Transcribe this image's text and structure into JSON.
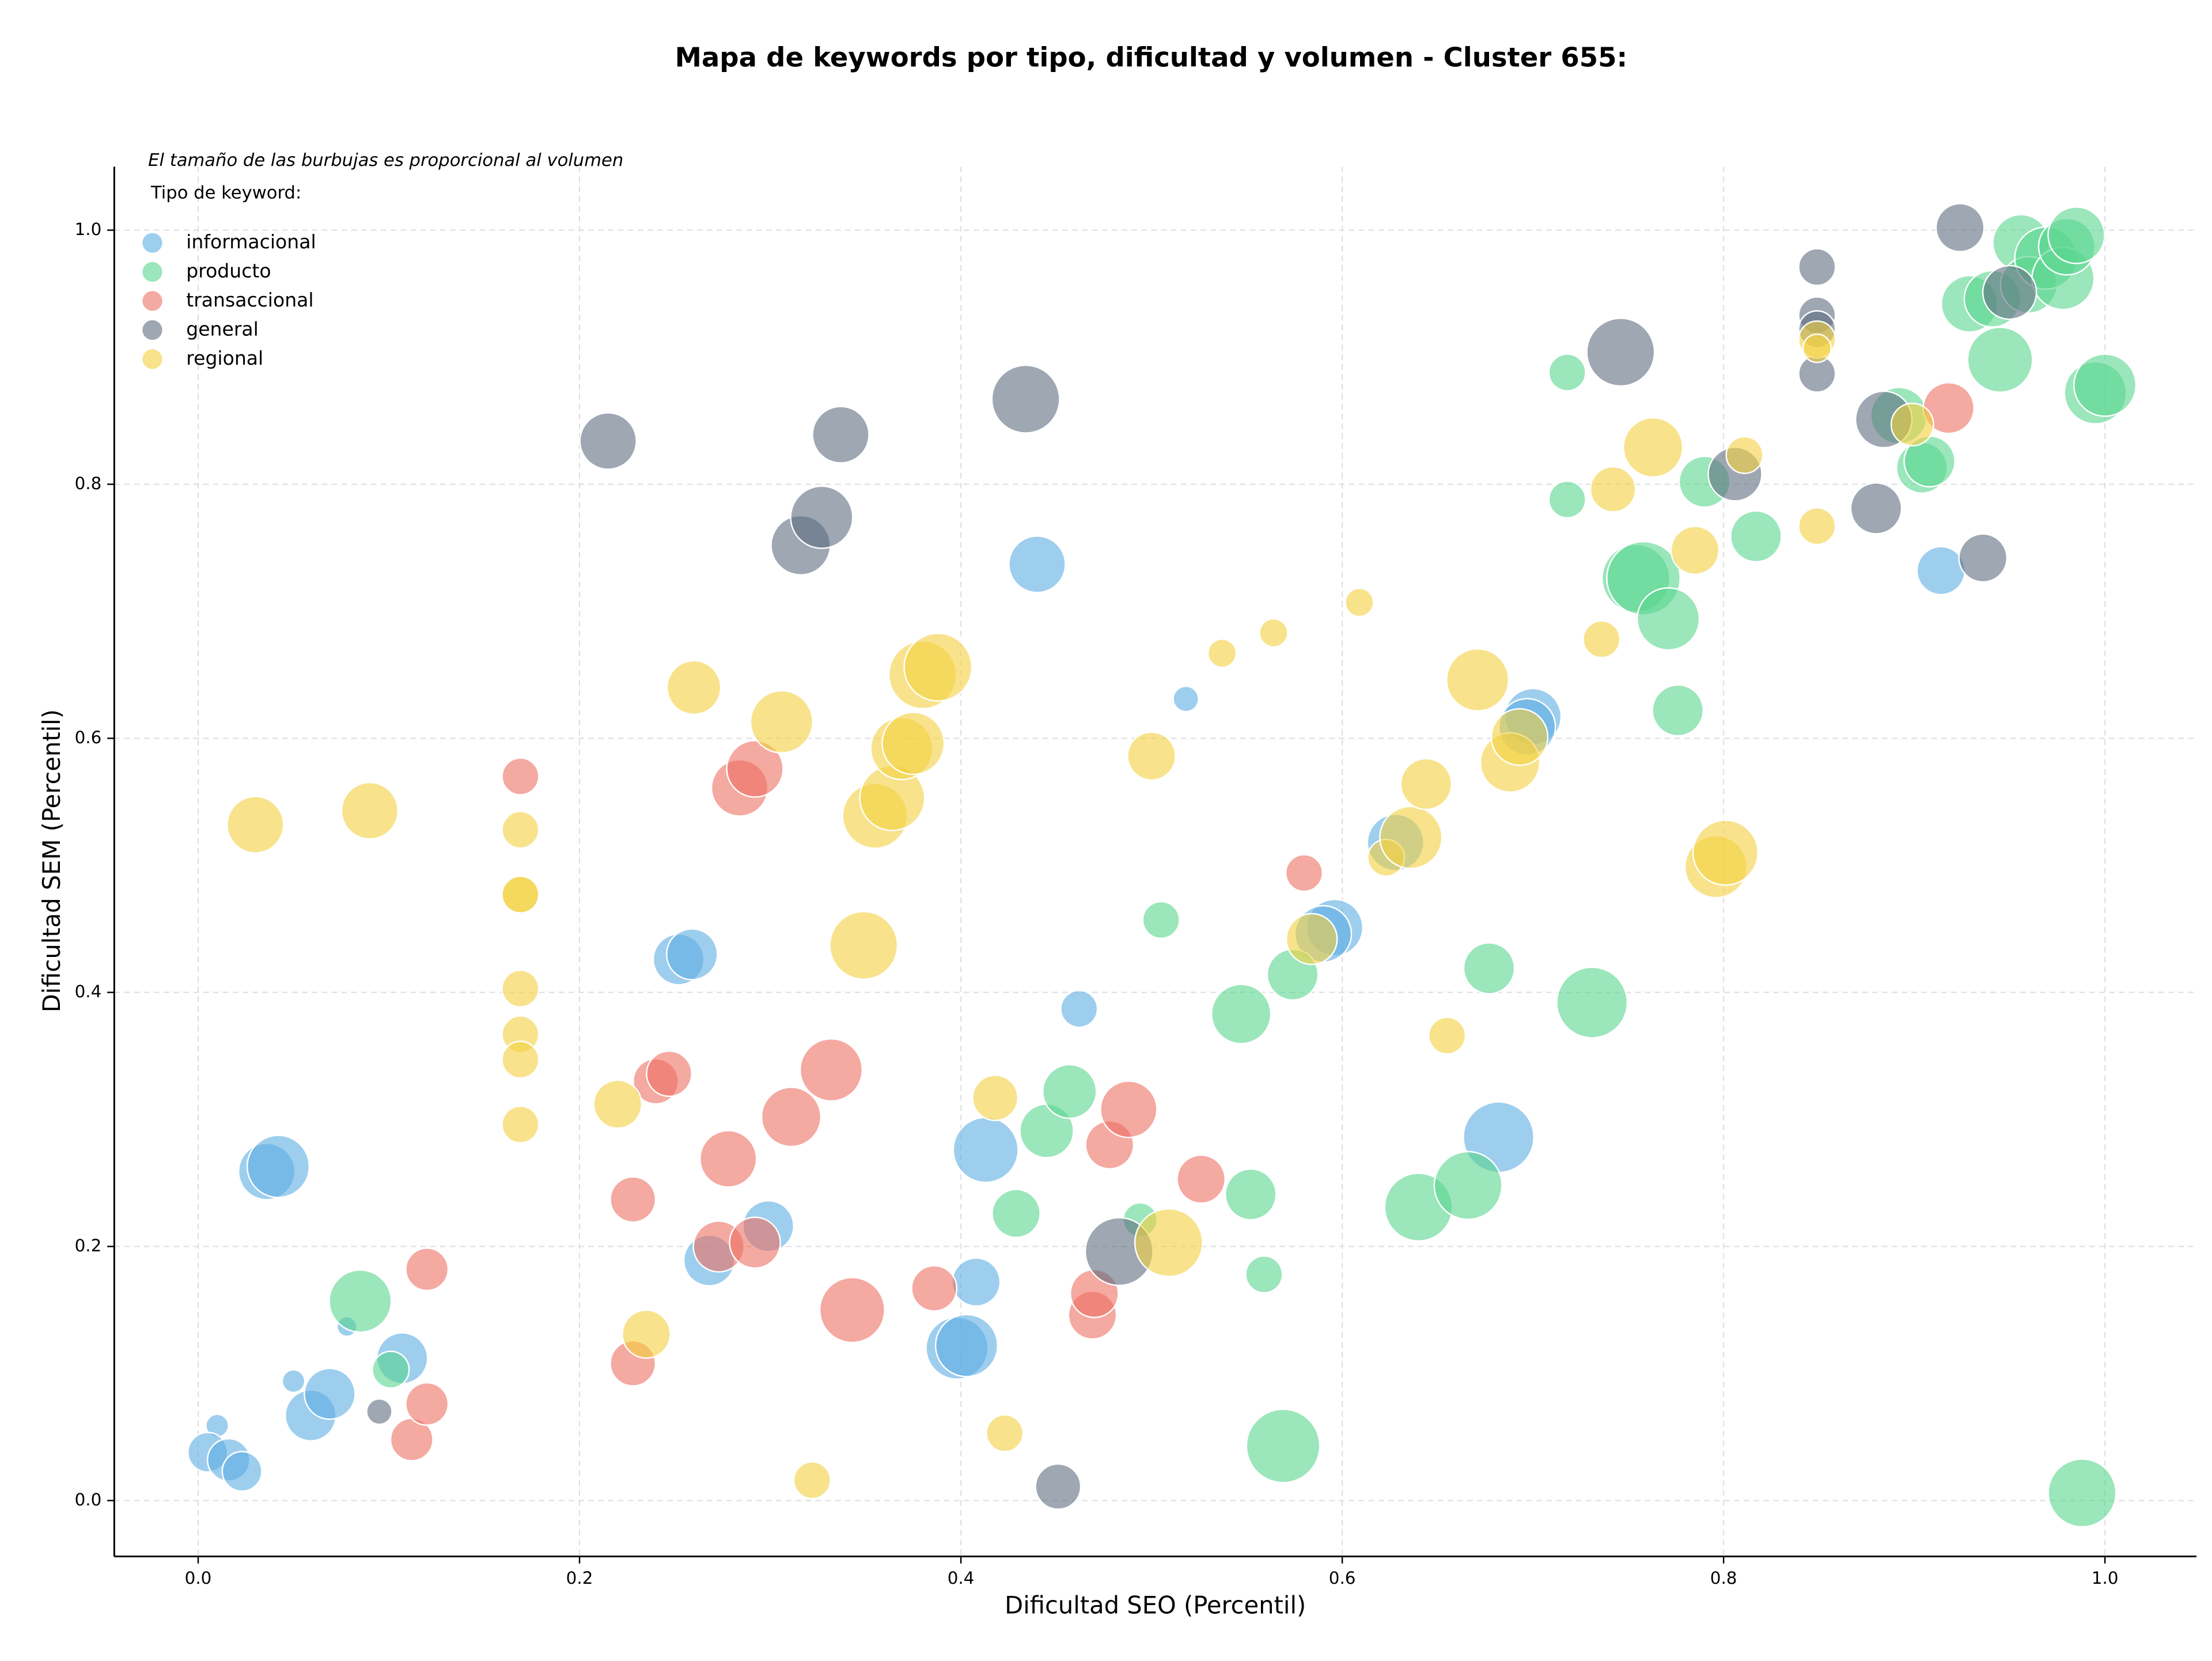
{
  "chart_data": {
    "type": "scatter",
    "title": "Mapa de keywords por tipo, dificultad y volumen - Cluster 655:",
    "x_label": "Dificultad SEO (Percentil)",
    "y_label": "Dificultad SEM (Percentil)",
    "annotation": "El tamaño de las burbujas es proporcional al volumen",
    "legend_title": "Tipo de keyword:",
    "legend_position": "upper left",
    "grid": true,
    "xlim": [
      -0.044,
      1.048
    ],
    "ylim": [
      -0.044,
      1.05
    ],
    "xticks": [
      {
        "value": 0,
        "label": "0.0"
      },
      0.2,
      0.4,
      0.6,
      0.8,
      {
        "value": 1,
        "label": "1.0"
      }
    ],
    "yticks": [
      {
        "value": 0,
        "label": "0.0"
      },
      0.2,
      0.4,
      0.6,
      0.8,
      {
        "value": 1,
        "label": "1.0"
      }
    ],
    "series": [
      {
        "name": "informacional",
        "color": "#5dade2",
        "x": [
          0.01,
          0.005,
          0.016,
          0.023,
          0.05,
          0.059,
          0.069,
          0.078,
          0.107,
          0.036,
          0.042,
          0.252,
          0.259,
          0.268,
          0.299,
          0.398,
          0.403,
          0.408,
          0.413,
          0.44,
          0.462,
          0.518,
          0.596,
          0.59,
          0.628,
          0.7,
          0.697,
          0.682,
          0.914
        ],
        "values": [
          0.059,
          0.038,
          0.032,
          0.023,
          0.094,
          0.067,
          0.084,
          0.137,
          0.112,
          0.259,
          0.263,
          0.426,
          0.43,
          0.189,
          0.216,
          0.12,
          0.122,
          0.172,
          0.276,
          0.737,
          0.387,
          0.631,
          0.451,
          0.446,
          0.518,
          0.617,
          0.609,
          0.286,
          0.732
        ],
        "sizes": [
          64,
          196,
          225,
          196,
          64,
          324,
          324,
          49,
          324,
          400,
          484,
          324,
          324,
          324,
          324,
          484,
          484,
          289,
          529,
          400,
          169,
          81,
          400,
          400,
          400,
          400,
          400,
          625,
          289
        ]
      },
      {
        "name": "producto",
        "color": "#58d68d",
        "x": [
          0.085,
          0.101,
          0.494,
          0.445,
          0.457,
          0.429,
          0.505,
          0.547,
          0.574,
          0.552,
          0.559,
          0.569,
          0.64,
          0.666,
          0.677,
          0.731,
          0.718,
          0.718,
          0.754,
          0.758,
          0.771,
          0.776,
          0.79,
          0.817,
          0.892,
          0.904,
          0.908,
          0.929,
          0.941,
          0.945,
          0.956,
          0.96,
          0.969,
          0.978,
          0.98,
          0.985,
          0.995,
          1.0,
          0.988
        ],
        "values": [
          0.157,
          0.103,
          0.221,
          0.291,
          0.322,
          0.226,
          0.457,
          0.383,
          0.414,
          0.241,
          0.178,
          0.043,
          0.231,
          0.248,
          0.419,
          0.392,
          0.888,
          0.788,
          0.726,
          0.726,
          0.694,
          0.622,
          0.802,
          0.759,
          0.854,
          0.813,
          0.818,
          0.942,
          0.946,
          0.898,
          0.99,
          0.957,
          0.978,
          0.962,
          0.987,
          0.996,
          0.872,
          0.878,
          0.006
        ],
        "sizes": [
          484,
          169,
          144,
          361,
          361,
          289,
          169,
          441,
          324,
          324,
          169,
          676,
          576,
          576,
          324,
          625,
          169,
          169,
          576,
          676,
          484,
          324,
          324,
          324,
          400,
          324,
          324,
          400,
          400,
          529,
          400,
          400,
          484,
          484,
          400,
          400,
          484,
          484,
          576
        ]
      },
      {
        "name": "transaccional",
        "color": "#ec7063",
        "x": [
          0.112,
          0.12,
          0.12,
          0.169,
          0.228,
          0.228,
          0.24,
          0.247,
          0.278,
          0.284,
          0.292,
          0.273,
          0.292,
          0.311,
          0.332,
          0.343,
          0.386,
          0.469,
          0.47,
          0.478,
          0.488,
          0.526,
          0.58,
          0.918
        ],
        "values": [
          0.048,
          0.076,
          0.182,
          0.57,
          0.108,
          0.237,
          0.33,
          0.336,
          0.269,
          0.561,
          0.576,
          0.2,
          0.203,
          0.302,
          0.339,
          0.15,
          0.167,
          0.146,
          0.163,
          0.28,
          0.308,
          0.253,
          0.494,
          0.86
        ],
        "sizes": [
          225,
          225,
          225,
          169,
          256,
          256,
          256,
          256,
          400,
          400,
          400,
          324,
          324,
          441,
          484,
          529,
          256,
          289,
          289,
          289,
          400,
          289,
          169,
          324
        ]
      },
      {
        "name": "general",
        "color": "#5d6d7e",
        "x": [
          0.095,
          0.215,
          0.316,
          0.327,
          0.337,
          0.434,
          0.451,
          0.483,
          0.746,
          0.806,
          0.849,
          0.849,
          0.849,
          0.849,
          0.88,
          0.884,
          0.924,
          0.936,
          0.95
        ],
        "values": [
          0.07,
          0.834,
          0.752,
          0.774,
          0.839,
          0.867,
          0.011,
          0.196,
          0.904,
          0.808,
          0.971,
          0.933,
          0.922,
          0.887,
          0.781,
          0.851,
          1.002,
          0.742,
          0.951
        ],
        "sizes": [
          81,
          400,
          441,
          484,
          400,
          576,
          256,
          576,
          576,
          361,
          169,
          169,
          169,
          169,
          324,
          400,
          289,
          289,
          361
        ]
      },
      {
        "name": "regional",
        "color": "#f4d03f",
        "x": [
          0.03,
          0.09,
          0.169,
          0.169,
          0.169,
          0.169,
          0.169,
          0.169,
          0.169,
          0.22,
          0.235,
          0.26,
          0.306,
          0.322,
          0.349,
          0.355,
          0.364,
          0.369,
          0.375,
          0.38,
          0.388,
          0.418,
          0.423,
          0.5,
          0.509,
          0.537,
          0.564,
          0.609,
          0.584,
          0.623,
          0.636,
          0.644,
          0.655,
          0.671,
          0.688,
          0.693,
          0.736,
          0.742,
          0.763,
          0.785,
          0.796,
          0.801,
          0.811,
          0.849,
          0.849,
          0.849,
          0.899
        ],
        "values": [
          0.532,
          0.543,
          0.528,
          0.477,
          0.477,
          0.403,
          0.367,
          0.347,
          0.296,
          0.312,
          0.131,
          0.64,
          0.613,
          0.016,
          0.437,
          0.539,
          0.553,
          0.592,
          0.596,
          0.65,
          0.656,
          0.317,
          0.053,
          0.586,
          0.203,
          0.667,
          0.683,
          0.707,
          0.442,
          0.506,
          0.522,
          0.564,
          0.366,
          0.646,
          0.581,
          0.601,
          0.678,
          0.796,
          0.829,
          0.748,
          0.499,
          0.51,
          0.823,
          0.767,
          0.914,
          0.907,
          0.847
        ],
        "sizes": [
          400,
          400,
          169,
          169,
          169,
          169,
          169,
          169,
          169,
          289,
          289,
          361,
          484,
          169,
          576,
          529,
          529,
          484,
          484,
          576,
          576,
          256,
          169,
          289,
          576,
          100,
          100,
          100,
          324,
          169,
          484,
          324,
          169,
          484,
          441,
          400,
          169,
          256,
          441,
          289,
          484,
          529,
          169,
          169,
          169,
          100,
          225
        ]
      }
    ]
  }
}
